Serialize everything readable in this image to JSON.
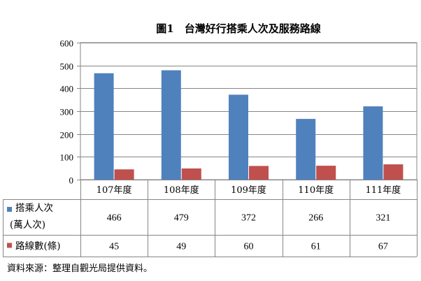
{
  "title": "圖1　台灣好行搭乘人次及服務路線",
  "source_note": "資料來源：整理自觀光局提供資料。",
  "colors": {
    "series1": "#4f81bd",
    "series2": "#c0504d",
    "grid": "#868686"
  },
  "chart_data": {
    "type": "bar",
    "title": "圖1　台灣好行搭乘人次及服務路線",
    "categories": [
      "107年度",
      "108年度",
      "109年度",
      "110年度",
      "111年度"
    ],
    "ylim": [
      0,
      600
    ],
    "yticks": [
      0,
      100,
      200,
      300,
      400,
      500,
      600
    ],
    "grid": "horizontal",
    "legend": "data-table",
    "series": [
      {
        "name": "搭乘人次",
        "name_line2": "(萬人次)",
        "color": "#4f81bd",
        "values": [
          466,
          479,
          372,
          266,
          321
        ]
      },
      {
        "name": "路線數(條)",
        "color": "#c0504d",
        "values": [
          45,
          49,
          60,
          61,
          67
        ]
      }
    ]
  }
}
